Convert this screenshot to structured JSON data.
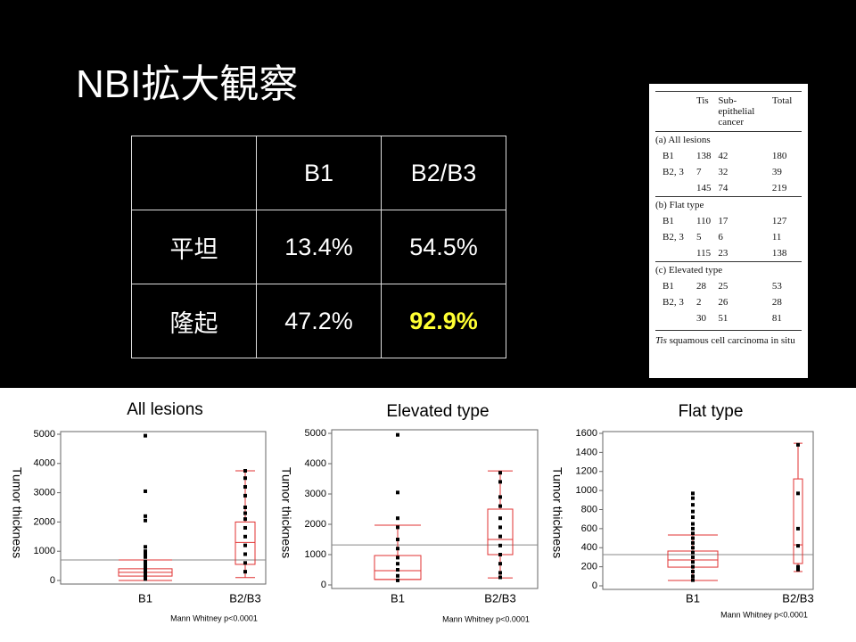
{
  "title": "NBI拡大観察",
  "table": {
    "columns": [
      "B1",
      "B2/B3"
    ],
    "rows": [
      {
        "label": "平坦",
        "cells": [
          "13.4%",
          "54.5%"
        ]
      },
      {
        "label": "隆起",
        "cells": [
          "47.2%",
          "92.9%"
        ]
      }
    ],
    "highlight": {
      "row": 1,
      "col": 1,
      "color": "#ffff33"
    }
  },
  "inset_table": {
    "columns": [
      "Tis",
      "Sub-\nepithelial\ncancer",
      "Total"
    ],
    "sections": [
      {
        "title": "(a) All lesions",
        "rows": [
          {
            "label": "B1",
            "values": [
              138,
              42,
              180
            ]
          },
          {
            "label": "B2, 3",
            "values": [
              7,
              32,
              39
            ]
          },
          {
            "values": [
              145,
              74,
              219
            ]
          }
        ]
      },
      {
        "title": "(b) Flat type",
        "rows": [
          {
            "label": "B1",
            "values": [
              110,
              17,
              127
            ]
          },
          {
            "label": "B2, 3",
            "values": [
              5,
              6,
              11
            ]
          },
          {
            "values": [
              115,
              23,
              138
            ]
          }
        ]
      },
      {
        "title": "(c) Elevated type",
        "rows": [
          {
            "label": "B1",
            "values": [
              28,
              25,
              53
            ]
          },
          {
            "label": "B2, 3",
            "values": [
              2,
              26,
              28
            ]
          },
          {
            "values": [
              30,
              51,
              81
            ]
          }
        ]
      }
    ],
    "note_term": "Tis",
    "note": "squamous cell carcinoma in situ"
  },
  "chart_data": [
    {
      "type": "box",
      "title": "All lesions",
      "y_label": "Tumor thickness",
      "footnote": "Mann Whitney  p<0.0001",
      "categories": [
        "B1",
        "B2/B3"
      ],
      "ylim": [
        0,
        5000
      ],
      "yticks": [
        0,
        1000,
        2000,
        3000,
        4000,
        5000
      ],
      "reference_line": 700,
      "box_color": "#e03030",
      "boxes": [
        {
          "whisker_low": 0,
          "q1": 150,
          "median": 280,
          "q3": 400,
          "whisker_high": 700,
          "points": [
            4950,
            3050,
            2200,
            2050,
            1150,
            1000,
            900,
            800,
            650,
            550,
            450,
            350,
            250,
            150,
            50
          ]
        },
        {
          "whisker_low": 100,
          "q1": 550,
          "median": 1300,
          "q3": 2000,
          "whisker_high": 3750,
          "points": [
            3750,
            3500,
            3200,
            2900,
            2500,
            2300,
            2100,
            1800,
            1500,
            1200,
            900,
            600,
            300
          ]
        }
      ]
    },
    {
      "type": "box",
      "title": "Elevated type",
      "y_label": "Tumor thickness",
      "footnote": "Mann Whitney  p<0.0001",
      "categories": [
        "B1",
        "B2/B3"
      ],
      "ylim": [
        0,
        5000
      ],
      "yticks": [
        0,
        1000,
        2000,
        3000,
        4000,
        5000
      ],
      "reference_line": 1320,
      "box_color": "#e03030",
      "boxes": [
        {
          "whisker_low": 180,
          "q1": 180,
          "median": 470,
          "q3": 970,
          "whisker_high": 1970,
          "points": [
            4950,
            3050,
            2200,
            1900,
            1500,
            1200,
            900,
            700,
            500,
            300,
            150
          ]
        },
        {
          "whisker_low": 230,
          "q1": 1000,
          "median": 1500,
          "q3": 2500,
          "whisker_high": 3760,
          "points": [
            3700,
            3400,
            2900,
            2600,
            2200,
            1900,
            1600,
            1300,
            1000,
            700,
            400,
            250
          ]
        }
      ]
    },
    {
      "type": "box",
      "title": "Flat type",
      "y_label": "Tumor thickness",
      "footnote": "Mann Whitney  p<0.0001",
      "categories": [
        "B1",
        "B2/B3"
      ],
      "ylim": [
        0,
        1600
      ],
      "yticks": [
        0,
        200,
        400,
        600,
        800,
        1000,
        1200,
        1400,
        1600
      ],
      "reference_line": 327,
      "box_color": "#e03030",
      "boxes": [
        {
          "whisker_low": 56,
          "q1": 196,
          "median": 271,
          "q3": 365,
          "whisker_high": 533,
          "points": [
            970,
            920,
            850,
            780,
            720,
            650,
            600,
            550,
            500,
            450,
            400,
            350,
            300,
            250,
            200,
            150,
            100,
            60
          ]
        },
        {
          "whisker_low": 150,
          "q1": 234,
          "median": 430,
          "q3": 1122,
          "whisker_high": 1496,
          "points": [
            1480,
            970,
            600,
            420,
            200,
            170
          ]
        }
      ]
    }
  ]
}
